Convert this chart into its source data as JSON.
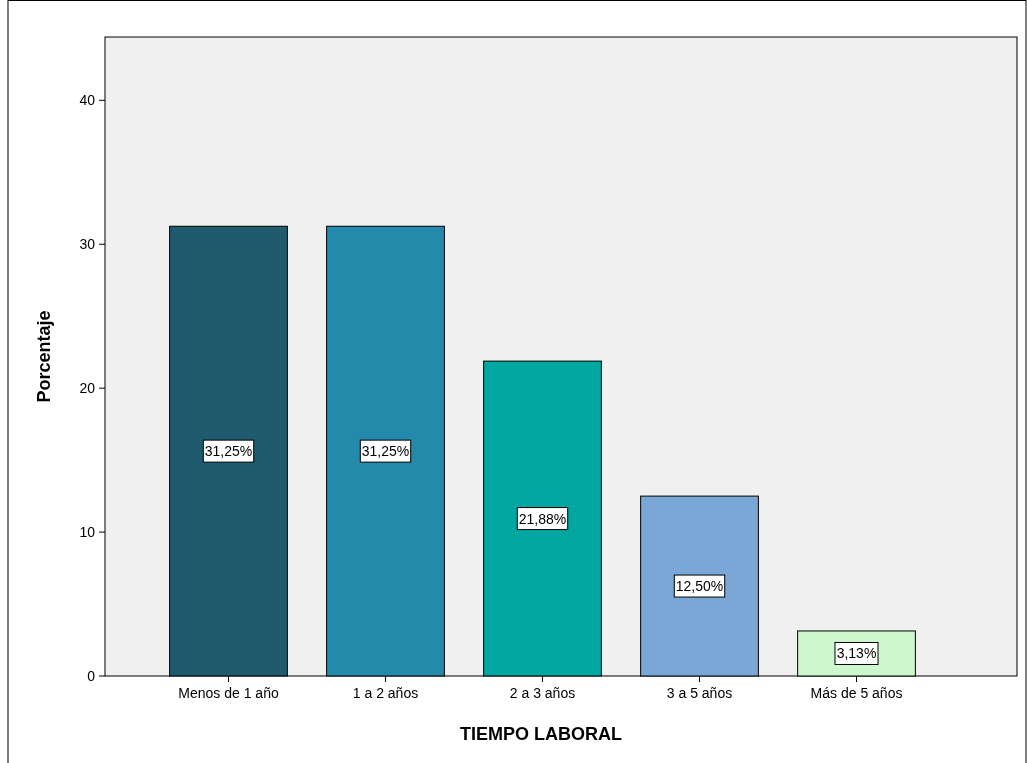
{
  "chart_data": {
    "type": "bar",
    "xlabel": "TIEMPO LABORAL",
    "ylabel": "Porcentaje",
    "categories": [
      "Menos de 1 año",
      "1 a 2 años",
      "2 a 3 años",
      "3 a 5 años",
      "Más de 5 años"
    ],
    "values": [
      31.25,
      31.25,
      21.88,
      12.5,
      3.13
    ],
    "value_labels": [
      "31,25%",
      "31,25%",
      "21,88%",
      "12,50%",
      "3,13%"
    ],
    "colors": [
      "#1f5a6e",
      "#248aac",
      "#00a6a0",
      "#7ba7d6",
      "#cdf7cd"
    ],
    "ylim": [
      0,
      44.4
    ],
    "yticks": [
      0,
      10,
      20,
      30,
      40
    ]
  }
}
